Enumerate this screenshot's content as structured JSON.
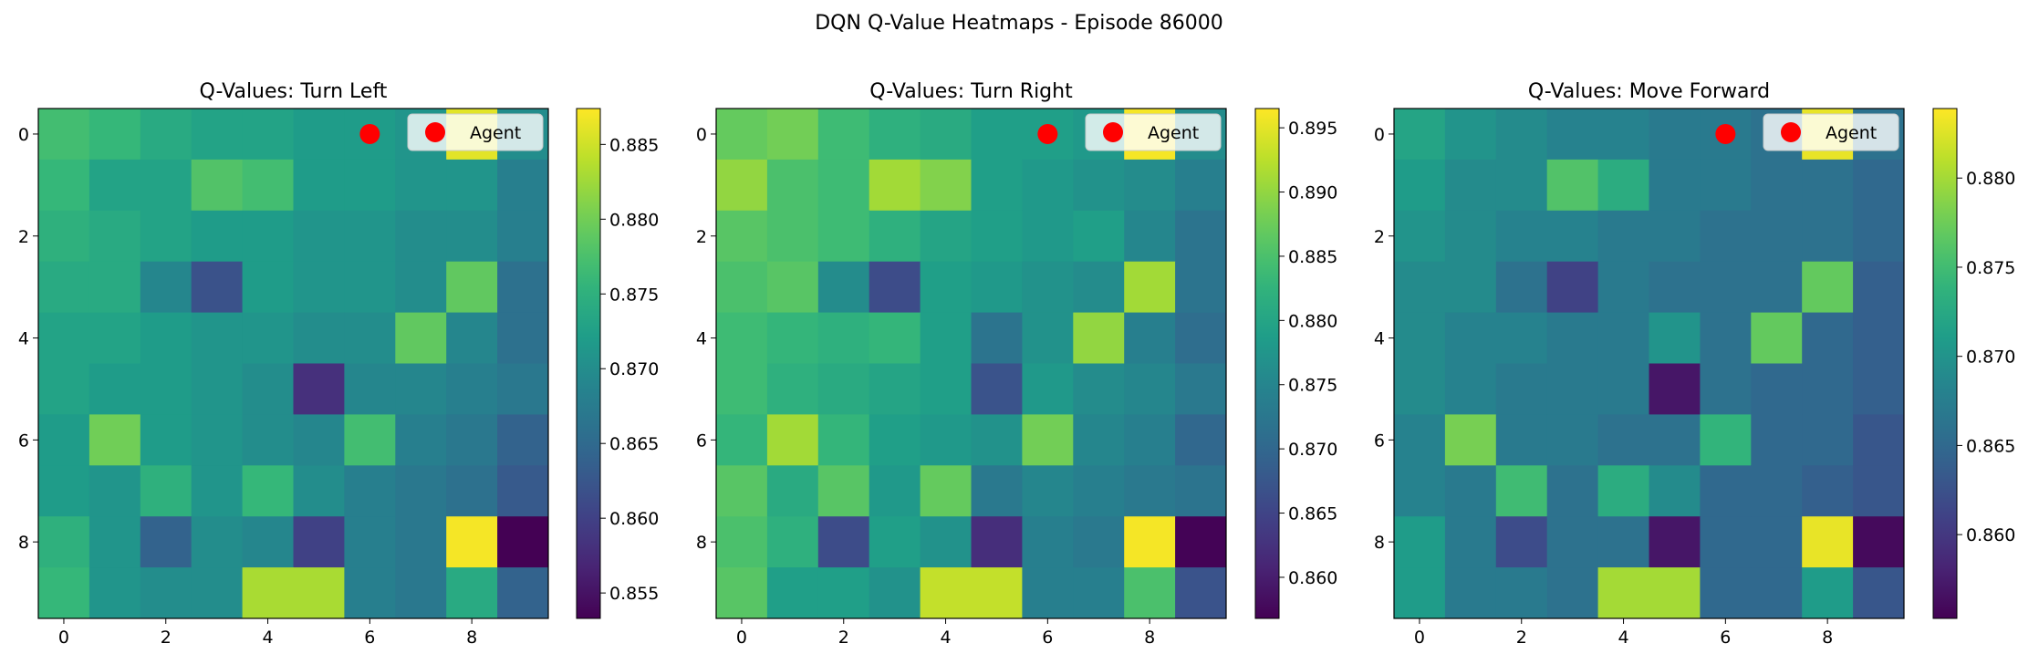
{
  "suptitle": "DQN Q-Value Heatmaps - Episode 86000",
  "colormap": "viridis",
  "agent_color": "#ff0000",
  "chart_data": [
    {
      "type": "heatmap",
      "title": "Q-Values: Turn Left",
      "legend": {
        "label": "Agent",
        "placement": "top-right"
      },
      "agent": {
        "row": 0,
        "col": 6
      },
      "x_ticks": [
        0,
        2,
        4,
        6,
        8
      ],
      "y_ticks": [
        0,
        2,
        4,
        6,
        8
      ],
      "colorbar": {
        "vmin": 0.8533,
        "vmax": 0.8874,
        "ticks": [
          "0.855",
          "0.860",
          "0.865",
          "0.870",
          "0.875",
          "0.880",
          "0.885"
        ]
      },
      "values": [
        [
          0.877,
          0.876,
          0.874,
          0.873,
          0.873,
          0.872,
          0.872,
          0.871,
          0.886,
          0.87
        ],
        [
          0.876,
          0.873,
          0.873,
          0.878,
          0.877,
          0.872,
          0.872,
          0.871,
          0.871,
          0.868
        ],
        [
          0.875,
          0.874,
          0.873,
          0.872,
          0.872,
          0.871,
          0.871,
          0.87,
          0.87,
          0.868
        ],
        [
          0.874,
          0.874,
          0.869,
          0.862,
          0.872,
          0.871,
          0.871,
          0.87,
          0.879,
          0.866
        ],
        [
          0.873,
          0.873,
          0.872,
          0.871,
          0.871,
          0.87,
          0.87,
          0.879,
          0.869,
          0.866
        ],
        [
          0.873,
          0.872,
          0.872,
          0.871,
          0.87,
          0.858,
          0.869,
          0.869,
          0.868,
          0.867
        ],
        [
          0.872,
          0.88,
          0.872,
          0.871,
          0.87,
          0.869,
          0.877,
          0.868,
          0.867,
          0.864
        ],
        [
          0.872,
          0.871,
          0.875,
          0.871,
          0.876,
          0.87,
          0.868,
          0.867,
          0.866,
          0.863
        ],
        [
          0.875,
          0.871,
          0.864,
          0.87,
          0.869,
          0.86,
          0.868,
          0.867,
          0.887,
          0.853
        ],
        [
          0.876,
          0.871,
          0.87,
          0.87,
          0.883,
          0.883,
          0.868,
          0.867,
          0.874,
          0.864
        ]
      ]
    },
    {
      "type": "heatmap",
      "title": "Q-Values: Turn Right",
      "legend": {
        "label": "Agent",
        "placement": "top-right"
      },
      "agent": {
        "row": 0,
        "col": 6
      },
      "x_ticks": [
        0,
        2,
        4,
        6,
        8
      ],
      "y_ticks": [
        0,
        2,
        4,
        6,
        8
      ],
      "colorbar": {
        "vmin": 0.8568,
        "vmax": 0.8965,
        "ticks": [
          "0.860",
          "0.865",
          "0.870",
          "0.875",
          "0.880",
          "0.885",
          "0.890",
          "0.895"
        ]
      },
      "values": [
        [
          0.887,
          0.888,
          0.884,
          0.882,
          0.881,
          0.879,
          0.879,
          0.878,
          0.896,
          0.876
        ],
        [
          0.89,
          0.885,
          0.884,
          0.891,
          0.889,
          0.879,
          0.878,
          0.877,
          0.876,
          0.874
        ],
        [
          0.886,
          0.885,
          0.884,
          0.882,
          0.88,
          0.879,
          0.878,
          0.879,
          0.875,
          0.872
        ],
        [
          0.885,
          0.886,
          0.876,
          0.866,
          0.879,
          0.878,
          0.877,
          0.876,
          0.891,
          0.872
        ],
        [
          0.884,
          0.883,
          0.882,
          0.883,
          0.879,
          0.872,
          0.877,
          0.89,
          0.874,
          0.871
        ],
        [
          0.884,
          0.882,
          0.881,
          0.88,
          0.879,
          0.867,
          0.878,
          0.876,
          0.875,
          0.873
        ],
        [
          0.883,
          0.891,
          0.883,
          0.879,
          0.878,
          0.877,
          0.888,
          0.875,
          0.874,
          0.87
        ],
        [
          0.886,
          0.881,
          0.886,
          0.878,
          0.887,
          0.873,
          0.875,
          0.874,
          0.873,
          0.872
        ],
        [
          0.885,
          0.882,
          0.866,
          0.879,
          0.877,
          0.862,
          0.874,
          0.873,
          0.896,
          0.857
        ],
        [
          0.886,
          0.879,
          0.879,
          0.877,
          0.893,
          0.893,
          0.874,
          0.874,
          0.885,
          0.867
        ]
      ]
    },
    {
      "type": "heatmap",
      "title": "Q-Values: Move Forward",
      "legend": {
        "label": "Agent",
        "placement": "top-right"
      },
      "agent": {
        "row": 0,
        "col": 6
      },
      "x_ticks": [
        0,
        2,
        4,
        6,
        8
      ],
      "y_ticks": [
        0,
        2,
        4,
        6,
        8
      ],
      "colorbar": {
        "vmin": 0.8553,
        "vmax": 0.8839,
        "ticks": [
          "0.860",
          "0.865",
          "0.870",
          "0.875",
          "0.880"
        ]
      },
      "values": [
        [
          0.872,
          0.87,
          0.869,
          0.868,
          0.868,
          0.867,
          0.867,
          0.866,
          0.883,
          0.866
        ],
        [
          0.871,
          0.869,
          0.869,
          0.876,
          0.873,
          0.867,
          0.867,
          0.866,
          0.866,
          0.865
        ],
        [
          0.87,
          0.869,
          0.868,
          0.868,
          0.867,
          0.867,
          0.866,
          0.866,
          0.866,
          0.865
        ],
        [
          0.869,
          0.869,
          0.866,
          0.861,
          0.867,
          0.866,
          0.866,
          0.866,
          0.877,
          0.864
        ],
        [
          0.869,
          0.868,
          0.868,
          0.867,
          0.867,
          0.87,
          0.866,
          0.877,
          0.865,
          0.864
        ],
        [
          0.869,
          0.868,
          0.867,
          0.867,
          0.867,
          0.857,
          0.866,
          0.865,
          0.865,
          0.864
        ],
        [
          0.868,
          0.878,
          0.867,
          0.867,
          0.866,
          0.866,
          0.874,
          0.865,
          0.865,
          0.863
        ],
        [
          0.868,
          0.867,
          0.875,
          0.866,
          0.873,
          0.869,
          0.865,
          0.865,
          0.864,
          0.863
        ],
        [
          0.871,
          0.867,
          0.862,
          0.866,
          0.866,
          0.857,
          0.865,
          0.865,
          0.883,
          0.856
        ],
        [
          0.871,
          0.867,
          0.867,
          0.866,
          0.88,
          0.88,
          0.865,
          0.865,
          0.871,
          0.863
        ]
      ]
    }
  ]
}
